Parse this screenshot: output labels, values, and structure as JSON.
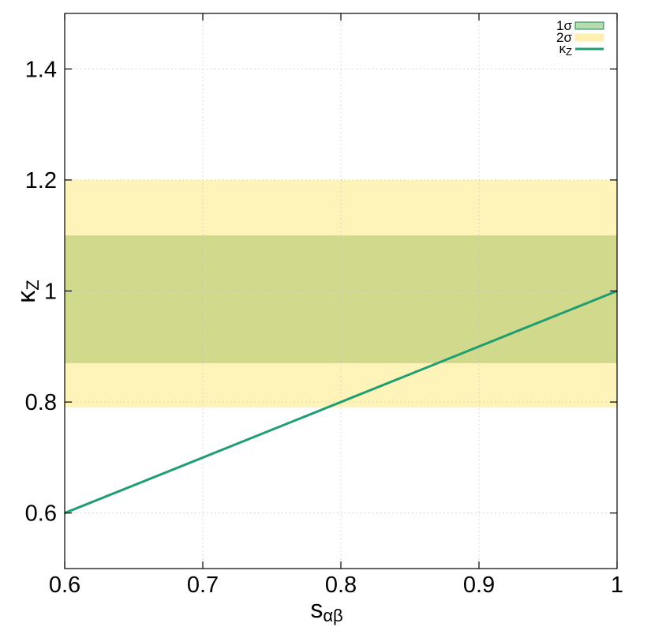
{
  "chart_data": {
    "type": "line",
    "xlabel": {
      "main": "s",
      "sub": "αβ"
    },
    "ylabel": {
      "main": "κ",
      "sub": "Z"
    },
    "xlim": [
      0.6,
      1.0
    ],
    "ylim": [
      0.5,
      1.5
    ],
    "xticks": [
      0.6,
      0.7,
      0.8,
      0.9,
      1.0
    ],
    "xtick_labels": [
      "0.6",
      "0.7",
      "0.8",
      "0.9",
      "1"
    ],
    "yticks": [
      0.6,
      0.8,
      1.0,
      1.2,
      1.4
    ],
    "ytick_labels": [
      "0.6",
      "0.8",
      "1",
      "1.2",
      "1.4"
    ],
    "grid": true,
    "legend_position": "top-right",
    "bands": [
      {
        "name": "1σ",
        "y_low": 0.87,
        "y_high": 1.1,
        "color": "#d0d98c",
        "swatch_color": "#b9dbb0",
        "swatch_border": "#1d8a55"
      },
      {
        "name": "2σ",
        "y_low": 0.79,
        "y_high": 1.2,
        "color": "#fef3b8",
        "swatch_color": "#fff0b0",
        "swatch_border": "#fff0b0"
      }
    ],
    "series": [
      {
        "name": {
          "main": "κ",
          "sub": "Z"
        },
        "color": "#1f9e72",
        "x": [
          0.6,
          1.0
        ],
        "y": [
          0.6,
          1.0
        ]
      }
    ]
  }
}
